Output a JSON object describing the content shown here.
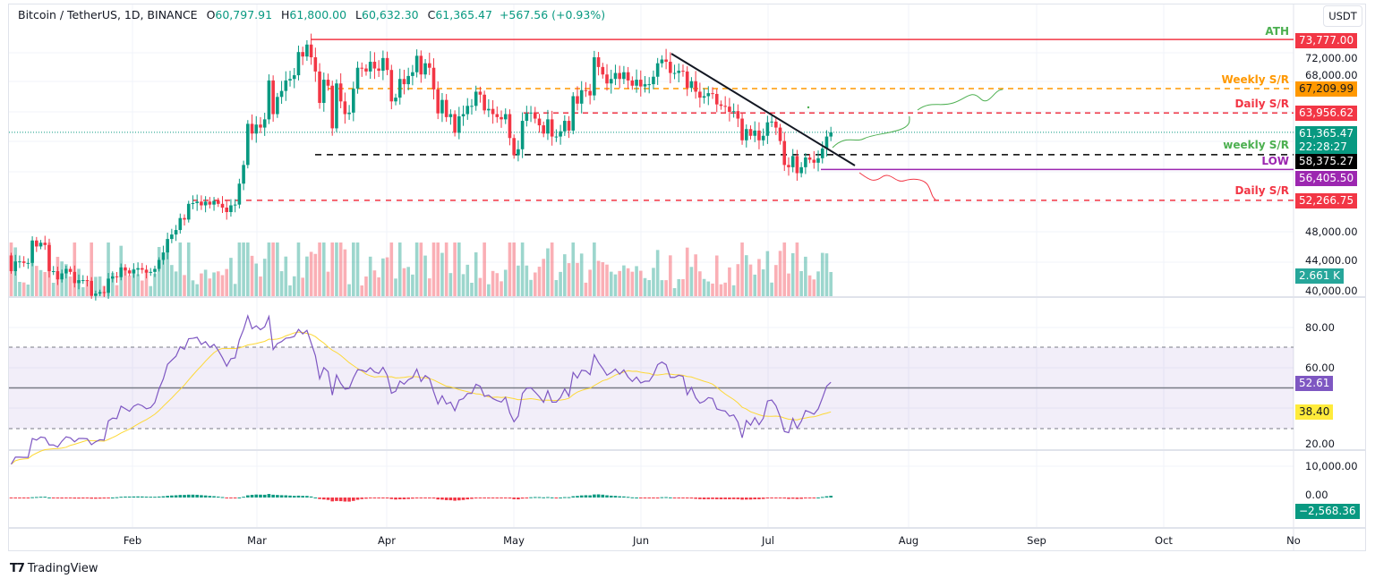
{
  "header": {
    "symbol": "Bitcoin / TetherUS, 1D, BINANCE",
    "open_label": "O",
    "open": "60,797.91",
    "high_label": "H",
    "high": "61,800.00",
    "low_label": "L",
    "low": "60,632.30",
    "close_label": "C",
    "close": "61,365.47",
    "change": "+567.56 (+0.93%)",
    "currency": "USDT"
  },
  "price_axis": {
    "ticks": [
      "72,000.00",
      "68,000.00",
      "48,000.00",
      "44,000.00",
      "40,000.00"
    ],
    "tags": {
      "ath": "73,777.00",
      "weekly_sr": "67,209.99",
      "daily_sr_upper": "63,956.62",
      "last_price": "61,365.47",
      "countdown": "22:28:27",
      "weekly_sr_green": "58,375.27",
      "low": "56,405.50",
      "daily_sr_lower": "52,266.75",
      "volume": "2.661 K"
    }
  },
  "annotations": {
    "ath": "ATH",
    "weekly_sr": "Weekly S/R",
    "daily_sr_upper": "Daily S/R",
    "weekly_sr_green": "weekly S/R",
    "low": "LOW",
    "daily_sr_lower": "Daily S/R"
  },
  "rsi_axis": {
    "ticks": [
      "80.00",
      "60.00",
      "20.00"
    ],
    "rsi_value": "52.61",
    "rsi_ma_value": "38.40"
  },
  "macd_axis": {
    "ticks": [
      "10,000.00",
      "0.00"
    ],
    "hist_value": "−2,568.36"
  },
  "time_axis": {
    "ticks": [
      "Feb",
      "Mar",
      "Apr",
      "May",
      "Jun",
      "Jul",
      "Aug",
      "Sep",
      "Oct",
      "No"
    ]
  },
  "brand": "TradingView",
  "colors": {
    "up": "#089981",
    "down": "#f23645",
    "ath": "#f23645",
    "weekly": "#ff9800",
    "daily": "#f23645",
    "support": "#000000",
    "low": "#9c27b0",
    "rsi": "#7e57c2",
    "rsi_ma": "#fdd835",
    "label_green": "#4caf50"
  },
  "chart_data": [
    {
      "type": "candlestick",
      "title": "Bitcoin / TetherUS, 1D, BINANCE",
      "x_start": "2024-01-03",
      "x_end": "2024-07-15",
      "interval": "1D",
      "ylim": [
        38000,
        76000
      ],
      "first_open": 44900,
      "closes": [
        42800,
        44100,
        44100,
        43900,
        43900,
        46900,
        46100,
        46600,
        46300,
        42800,
        42800,
        41700,
        42500,
        43100,
        42700,
        41200,
        41600,
        41600,
        41500,
        39500,
        39800,
        40000,
        39900,
        41800,
        42100,
        42000,
        43300,
        42900,
        42500,
        43000,
        43200,
        43000,
        42600,
        42700,
        43100,
        44300,
        45300,
        47100,
        47700,
        48300,
        49900,
        49700,
        51800,
        51900,
        52100,
        51600,
        52100,
        51700,
        52200,
        51800,
        51300,
        50700,
        51600,
        51700,
        54500,
        57000,
        62500,
        61200,
        62400,
        62000,
        63100,
        68300,
        63800,
        66100,
        66900,
        68300,
        68500,
        69000,
        72100,
        71500,
        73100,
        71400,
        69500,
        65300,
        68400,
        67600,
        61900,
        67900,
        65500,
        63800,
        64000,
        67200,
        70000,
        69900,
        69500,
        70800,
        69900,
        69600,
        71300,
        69700,
        65500,
        66000,
        68500,
        67800,
        68900,
        69400,
        71600,
        69100,
        70600,
        70000,
        67100,
        63900,
        65700,
        63400,
        63800,
        61300,
        63500,
        63800,
        64900,
        64900,
        66800,
        66400,
        64300,
        64500,
        63800,
        63400,
        63100,
        63800,
        60600,
        58300,
        59100,
        62900,
        63900,
        64000,
        63200,
        62300,
        61200,
        63100,
        60800,
        60800,
        61500,
        62900,
        61600,
        66200,
        65200,
        67000,
        66900,
        66300,
        71400,
        70100,
        69100,
        67900,
        68500,
        69300,
        68500,
        69400,
        68300,
        67600,
        68400,
        67500,
        67800,
        67800,
        68800,
        70600,
        71100,
        70800,
        69300,
        69300,
        69600,
        69500,
        67300,
        68200,
        66800,
        66000,
        66200,
        66600,
        66500,
        65100,
        64900,
        64800,
        64100,
        64200,
        63200,
        60300,
        61800,
        60900,
        61600,
        60300,
        60900,
        62700,
        62800,
        62000,
        60200,
        57000,
        56700,
        58200,
        55900,
        56700,
        58000,
        57700,
        57300,
        57900,
        59200,
        60800,
        61365.47
      ],
      "levels": [
        {
          "name": "ATH",
          "value": 73777.0
        },
        {
          "name": "Weekly S/R",
          "value": 67209.99
        },
        {
          "name": "Daily S/R",
          "value": 63956.62
        },
        {
          "name": "weekly S/R",
          "value": 58375.27
        },
        {
          "name": "LOW",
          "value": 56405.5
        },
        {
          "name": "Daily S/R",
          "value": 52266.75
        }
      ],
      "last_volume": "2.661 K"
    },
    {
      "type": "line",
      "title": "RSI",
      "ylim": [
        15,
        95
      ],
      "bands": [
        30,
        50,
        70
      ],
      "last": 52.61,
      "ma_last": 38.4
    },
    {
      "type": "bar",
      "title": "MACD histogram",
      "last": -2568.36
    }
  ]
}
